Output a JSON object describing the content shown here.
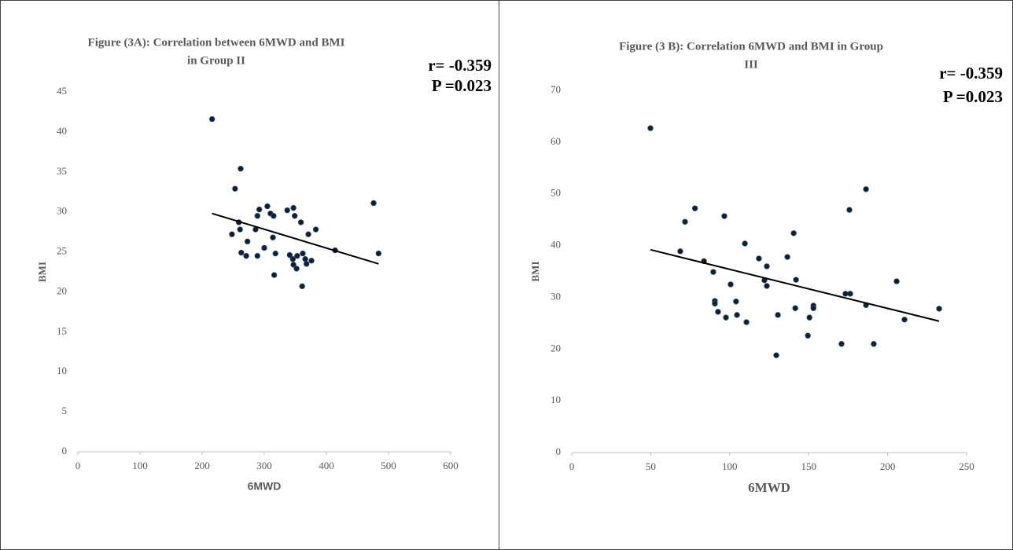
{
  "chart_data": [
    {
      "type": "scatter",
      "title": [
        "Figure (3A):  Correlation between 6MWD and BMI",
        "in Group II"
      ],
      "annotations": [
        "r= -0.359",
        "P =0.023"
      ],
      "xlabel": "6MWD",
      "ylabel": "BMI",
      "xlim": [
        0,
        600
      ],
      "xticks": [
        0,
        100,
        200,
        300,
        400,
        500,
        600
      ],
      "ylim": [
        0,
        45
      ],
      "yticks": [
        0,
        5,
        10,
        15,
        20,
        25,
        30,
        35,
        40,
        45
      ],
      "color": "#0f1f33",
      "x": [
        216,
        262,
        253,
        259,
        261,
        248,
        273,
        286,
        289,
        292,
        263,
        271,
        289,
        305,
        310,
        315,
        300,
        314,
        318,
        316,
        337,
        347,
        349,
        359,
        341,
        346,
        347,
        352,
        353,
        362,
        366,
        368,
        371,
        376,
        383,
        361,
        414,
        476,
        484
      ],
      "values": [
        41.6,
        35.4,
        32.9,
        28.7,
        27.8,
        27.2,
        26.3,
        27.8,
        29.5,
        30.3,
        24.9,
        24.5,
        24.5,
        30.7,
        29.8,
        29.5,
        25.5,
        26.8,
        24.8,
        22.1,
        30.2,
        30.5,
        29.5,
        28.7,
        24.6,
        24.1,
        23.4,
        22.9,
        24.5,
        24.8,
        24.1,
        23.5,
        27.2,
        23.9,
        27.8,
        20.7,
        25.2,
        31.1,
        24.8
      ],
      "trendline": {
        "x": [
          216,
          484
        ],
        "values": [
          29.8,
          23.5
        ]
      }
    },
    {
      "type": "scatter",
      "title": [
        "Figure (3 B):  Correlation 6MWD and BMI in Group",
        "III"
      ],
      "annotations": [
        "r= -0.359",
        "P =0.023"
      ],
      "xlabel": "6MWD",
      "ylabel": "BMI",
      "xlim": [
        0,
        250
      ],
      "xticks": [
        0,
        50,
        100,
        150,
        200,
        250
      ],
      "ylim": [
        0,
        70
      ],
      "yticks": [
        0,
        10,
        20,
        30,
        40,
        50,
        60,
        70
      ],
      "color": "#0f1f33",
      "x": [
        49.8,
        68.7,
        71.7,
        78,
        83.7,
        89.6,
        90.6,
        90.6,
        92.6,
        96.6,
        97.6,
        100.6,
        104,
        104.6,
        109.6,
        110.6,
        118.5,
        122,
        123.5,
        123.5,
        129.5,
        130.5,
        136.5,
        140.5,
        141.5,
        142,
        149.5,
        150.5,
        153,
        153,
        170.8,
        173.3,
        176.3,
        175.8,
        186.3,
        186.3,
        191.2,
        205.7,
        210.7,
        232.6
      ],
      "values": [
        62.7,
        38.9,
        44.6,
        47.2,
        37.0,
        34.9,
        29.3,
        28.8,
        27.2,
        45.7,
        26.1,
        32.5,
        29.2,
        26.6,
        40.4,
        25.2,
        37.5,
        33.3,
        36.0,
        32.2,
        18.8,
        26.6,
        37.8,
        42.4,
        27.9,
        33.4,
        22.6,
        26.1,
        28.4,
        27.9,
        21.0,
        30.7,
        30.7,
        46.9,
        28.5,
        50.9,
        21.0,
        33.1,
        25.7,
        27.8
      ],
      "trendline": {
        "x": [
          49.8,
          232.6
        ],
        "values": [
          39.2,
          25.4
        ]
      }
    }
  ]
}
